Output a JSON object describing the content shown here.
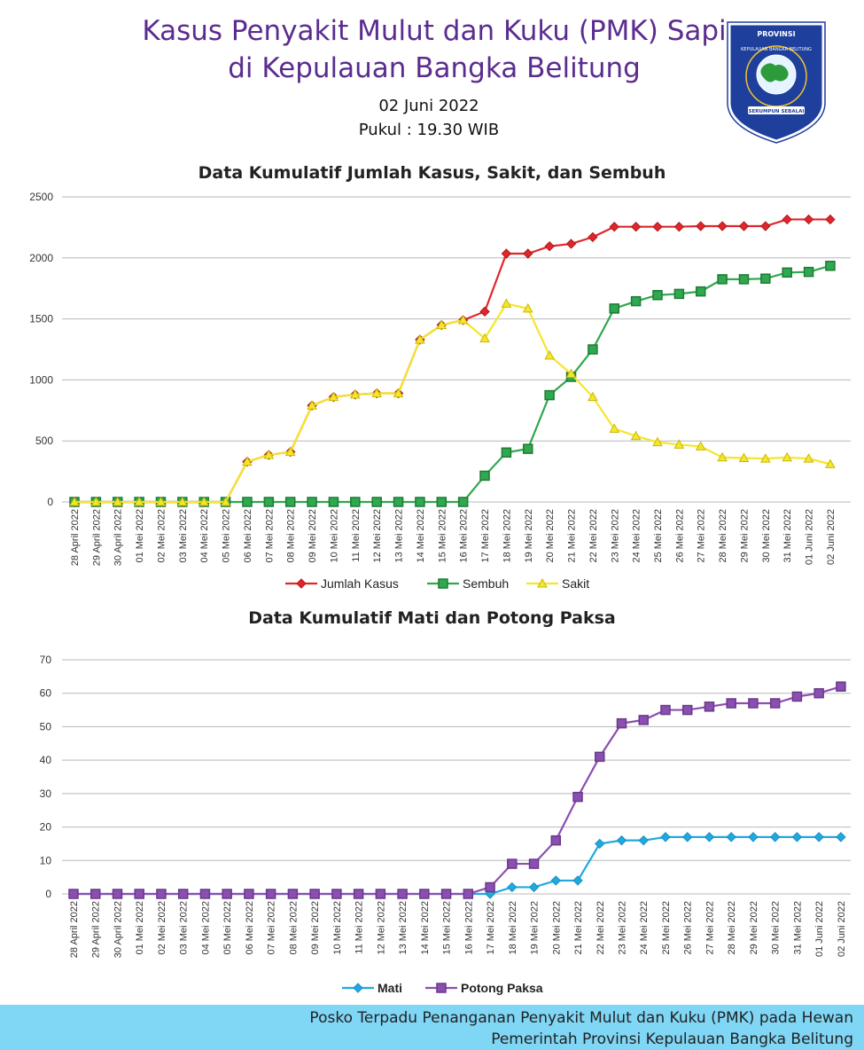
{
  "header": {
    "title_line1": "Kasus Penyakit Mulut dan Kuku (PMK) Sapi",
    "title_line2": "di Kepulauan Bangka Belitung",
    "date": "02 Juni 2022",
    "time": "Pukul : 19.30 WIB"
  },
  "logo": {
    "top_text": "PROVINSI",
    "arc_text": "KEPULAUAN BANGKA BELITUNG",
    "motto": "SERUMPUN SEBALAI",
    "colors": {
      "shield": "#1e3f9c",
      "border": "#ffffff",
      "map": "#2e9b3a"
    }
  },
  "footer": {
    "line1": "Posko Terpadu Penanganan Penyakit Mulut dan Kuku (PMK) pada Hewan",
    "line2": "Pemerintah Provinsi Kepulauan Bangka Belitung",
    "color": "#7fd6f5"
  },
  "chart_data": [
    {
      "type": "line",
      "title": "Data Kumulatif Jumlah Kasus, Sakit, dan Sembuh",
      "categories": [
        "28 April 2022",
        "29 April 2022",
        "30 April 2022",
        "01 Mei 2022",
        "02 Mei 2022",
        "03 Mei 2022",
        "04 Mei 2022",
        "05 Mei 2022",
        "06 Mei 2022",
        "07 Mei 2022",
        "08 Mei 2022",
        "09 Mei 2022",
        "10 Mei 2022",
        "11 Mei 2022",
        "12 Mei 2022",
        "13 Mei 2022",
        "14 Mei 2022",
        "15 Mei 2022",
        "16 Mei 2022",
        "17 Mei 2022",
        "18 Mei 2022",
        "19 Mei 2022",
        "20 Mei 2022",
        "21 Mei 2022",
        "22 Mei 2022",
        "23 Mei 2022",
        "24 Mei 2022",
        "25 Mei 2022",
        "26 Mei 2022",
        "27 Mei 2022",
        "28 Mei 2022",
        "29 Mei 2022",
        "30 Mei 2022",
        "31 Mei 2022",
        "01 Juni 2022",
        "02 Juni 2022"
      ],
      "ylim": [
        0,
        2500
      ],
      "yticks": [
        0,
        500,
        1000,
        1500,
        2000,
        2500
      ],
      "grid": true,
      "legend": "bottom",
      "series": [
        {
          "name": "Jumlah Kasus",
          "color": "#e0262b",
          "marker": "diamond",
          "values": [
            0,
            0,
            0,
            0,
            0,
            0,
            0,
            0,
            330,
            385,
            410,
            790,
            860,
            880,
            890,
            890,
            1330,
            1450,
            1490,
            1560,
            2035,
            2035,
            2095,
            2115,
            2170,
            2255,
            2255,
            2255,
            2255,
            2260,
            2260,
            2260,
            2260,
            2315,
            2315,
            2315
          ]
        },
        {
          "name": "Sembuh",
          "color": "#2fa84f",
          "marker": "square",
          "values": [
            0,
            0,
            0,
            0,
            0,
            0,
            0,
            0,
            0,
            0,
            0,
            0,
            0,
            0,
            0,
            0,
            0,
            0,
            0,
            215,
            405,
            435,
            875,
            1025,
            1250,
            1585,
            1645,
            1695,
            1705,
            1725,
            1825,
            1825,
            1830,
            1880,
            1885,
            1935
          ]
        },
        {
          "name": "Sakit",
          "color": "#f5e62a",
          "marker": "triangle",
          "values": [
            0,
            0,
            0,
            0,
            0,
            0,
            0,
            0,
            330,
            385,
            410,
            790,
            860,
            880,
            890,
            890,
            1330,
            1450,
            1490,
            1340,
            1625,
            1585,
            1200,
            1050,
            860,
            600,
            540,
            490,
            470,
            455,
            365,
            360,
            355,
            365,
            355,
            310
          ]
        }
      ]
    },
    {
      "type": "line",
      "title": "Data Kumulatif Mati dan Potong Paksa",
      "categories": [
        "28 April 2022",
        "29 April 2022",
        "30 April 2022",
        "01 Mei 2022",
        "02 Mei 2022",
        "03 Mei 2022",
        "04 Mei 2022",
        "05 Mei 2022",
        "06 Mei 2022",
        "07 Mei 2022",
        "08 Mei 2022",
        "09 Mei 2022",
        "10 Mei 2022",
        "11 Mei 2022",
        "12 Mei 2022",
        "13 Mei 2022",
        "14 Mei 2022",
        "15 Mei 2022",
        "16 Mei 2022",
        "17 Mei 2022",
        "18 Mei 2022",
        "19 Mei 2022",
        "20 Mei 2022",
        "21 Mei 2022",
        "22 Mei 2022",
        "23 Mei 2022",
        "24 Mei 2022",
        "25 Mei 2022",
        "26 Mei 2022",
        "27 Mei 2022",
        "28 Mei 2022",
        "29 Mei 2022",
        "30 Mei 2022",
        "31 Mei 2022",
        "01 Juni 2022",
        "02 Juni 2022"
      ],
      "ylim": [
        0,
        70
      ],
      "yticks": [
        0,
        10,
        20,
        30,
        40,
        50,
        60,
        70
      ],
      "grid": true,
      "legend": "bottom",
      "series": [
        {
          "name": "Mati",
          "color": "#1fa9e0",
          "marker": "diamond",
          "values": [
            0,
            0,
            0,
            0,
            0,
            0,
            0,
            0,
            0,
            0,
            0,
            0,
            0,
            0,
            0,
            0,
            0,
            0,
            0,
            0,
            2,
            2,
            4,
            4,
            15,
            16,
            16,
            17,
            17,
            17,
            17,
            17,
            17,
            17,
            17,
            17
          ]
        },
        {
          "name": "Potong Paksa",
          "color": "#8a4fb0",
          "marker": "square",
          "values": [
            0,
            0,
            0,
            0,
            0,
            0,
            0,
            0,
            0,
            0,
            0,
            0,
            0,
            0,
            0,
            0,
            0,
            0,
            0,
            2,
            9,
            9,
            16,
            29,
            41,
            51,
            52,
            55,
            55,
            56,
            57,
            57,
            57,
            59,
            60,
            62
          ]
        }
      ]
    }
  ]
}
